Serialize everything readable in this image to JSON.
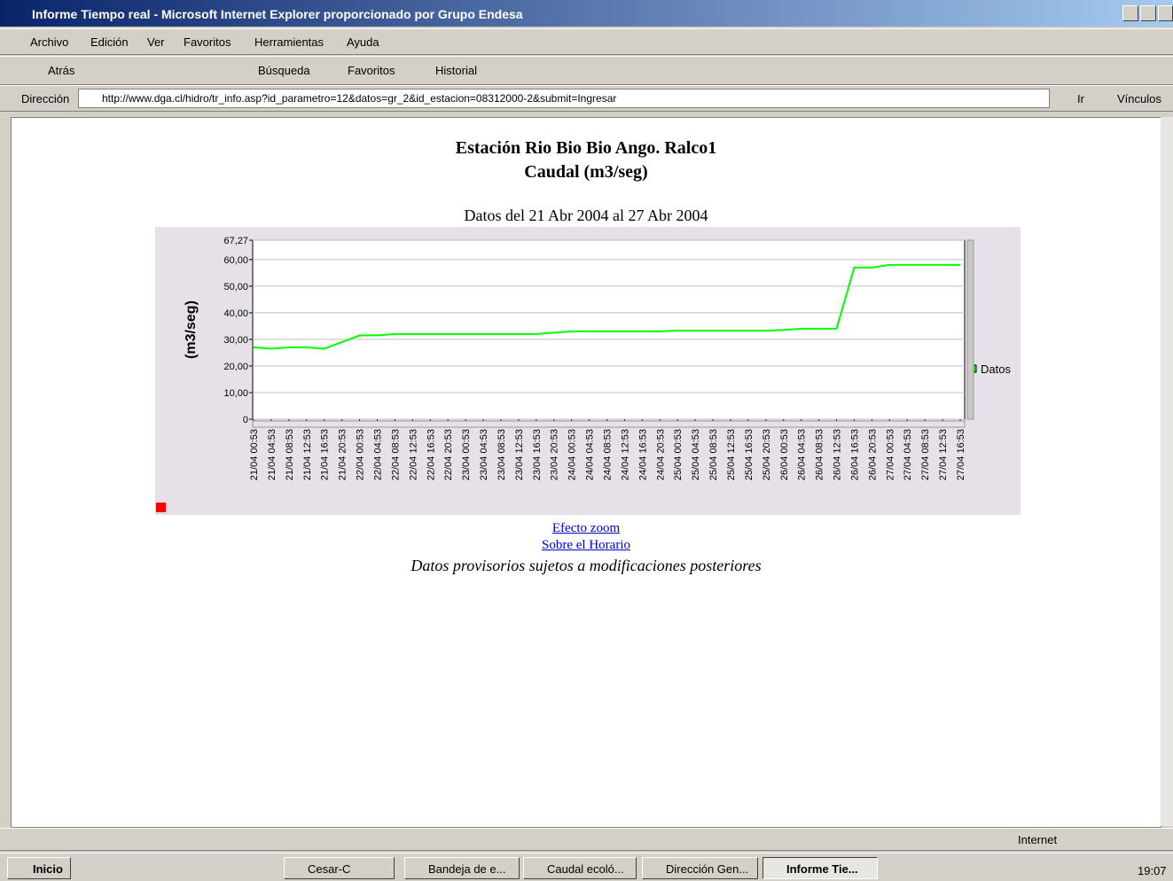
{
  "window_title": "Informe Tiempo real - Microsoft Internet Explorer proporcionado por Grupo Endesa",
  "menu": [
    "Archivo",
    "Edición",
    "Ver",
    "Favoritos",
    "Herramientas",
    "Ayuda"
  ],
  "toolbar": [
    "Atrás",
    "Búsqueda",
    "Favoritos",
    "Historial"
  ],
  "address_label": "Dirección",
  "address": "http://www.dga.cl/hidro/tr_info.asp?id_parametro=12&datos=gr_2&id_estacion=08312000-2&submit=Ingresar",
  "go": "Ir",
  "links_label": "Vínculos",
  "page": {
    "title": "Estación Rio Bio Bio Ango. Ralco1",
    "subtitle": "Caudal (m3/seg)",
    "links": [
      "Efecto zoom",
      "Sobre el Horario"
    ],
    "note": "Datos provisorios sujetos a modificaciones posteriores"
  },
  "chart_data": {
    "type": "line",
    "title": "Datos del 21 Abr 2004 al 27 Abr 2004",
    "y_label": "(m3/seg)",
    "categories": [
      "21/04 00:53",
      "21/04 04:53",
      "21/04 08:53",
      "21/04 12:53",
      "21/04 16:53",
      "21/04 20:53",
      "22/04 00:53",
      "22/04 04:53",
      "22/04 08:53",
      "22/04 12:53",
      "22/04 16:53",
      "22/04 20:53",
      "23/04 00:53",
      "23/04 04:53",
      "23/04 08:53",
      "23/04 12:53",
      "23/04 16:53",
      "23/04 20:53",
      "24/04 00:53",
      "24/04 04:53",
      "24/04 08:53",
      "24/04 12:53",
      "24/04 16:53",
      "24/04 20:53",
      "25/04 00:53",
      "25/04 04:53",
      "25/04 08:53",
      "25/04 12:53",
      "25/04 16:53",
      "25/04 20:53",
      "26/04 00:53",
      "26/04 04:53",
      "26/04 08:53",
      "26/04 12:53",
      "26/04 16:53",
      "26/04 20:53",
      "27/04 00:53",
      "27/04 04:53",
      "27/04 08:53",
      "27/04 12:53",
      "27/04 16:53"
    ],
    "series": [
      {
        "name": "Datos",
        "color": "#00ff00",
        "values": [
          27,
          26.5,
          27,
          27,
          26.5,
          29,
          31.5,
          31.5,
          32,
          32,
          32,
          32,
          32,
          32,
          32,
          32,
          32,
          32.5,
          33,
          33,
          33,
          33,
          33,
          33,
          33.3,
          33.3,
          33.3,
          33.3,
          33.3,
          33.3,
          33.5,
          34,
          34,
          34,
          57,
          57,
          58,
          58,
          58,
          58,
          58
        ]
      }
    ],
    "ylim": [
      0,
      67.27
    ],
    "yticks": [
      0,
      {
        "value": 10,
        "label": "10,00"
      },
      {
        "value": 20,
        "label": "20,00"
      },
      {
        "value": 30,
        "label": "30,00"
      },
      {
        "value": 40,
        "label": "40,00"
      },
      {
        "value": 50,
        "label": "50,00"
      },
      {
        "value": 60,
        "label": "60,00"
      },
      {
        "value": 67.27,
        "label": "67,27"
      }
    ],
    "grid": true,
    "legend": "right"
  },
  "status": "Internet",
  "taskbar": {
    "start": "Inicio",
    "items": [
      "Cesar-C",
      "Bandeja de e...",
      "Caudal ecoló...",
      "Dirección Gen...",
      "Informe Tie..."
    ],
    "clock": "19:07"
  }
}
